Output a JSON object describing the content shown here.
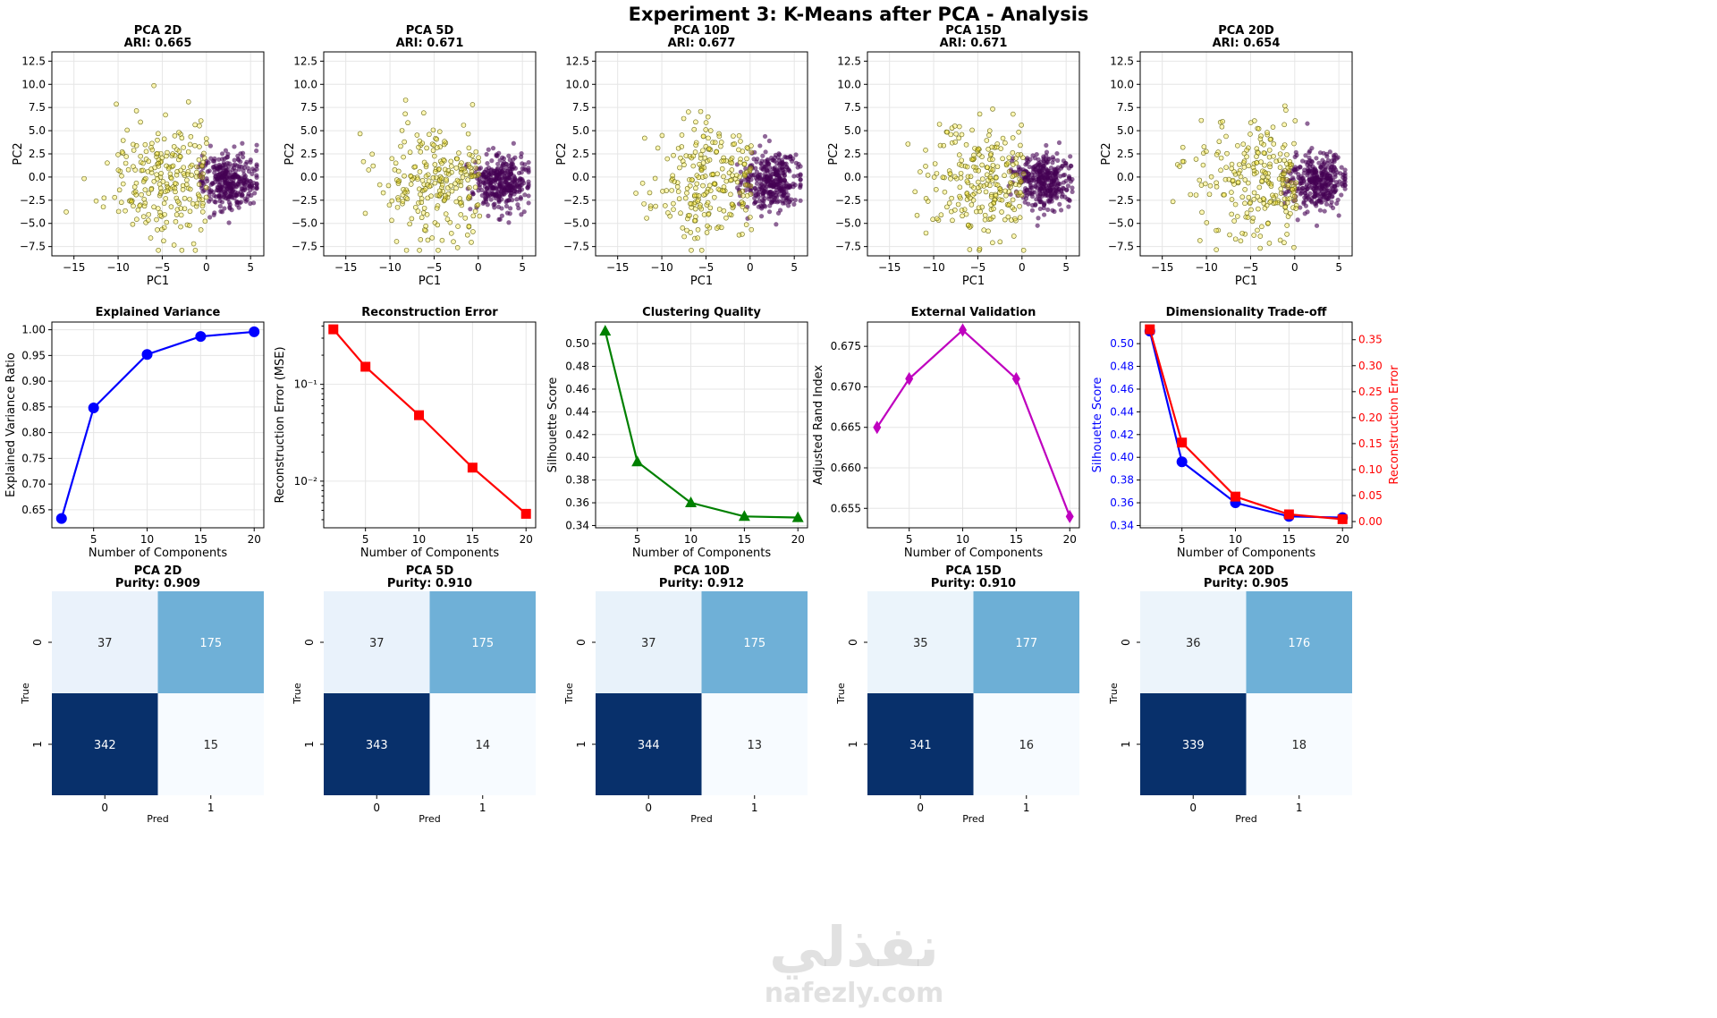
{
  "title": "Experiment 3: K-Means after PCA - Analysis",
  "watermark": {
    "arabic": "نفذلي",
    "latin": "nafezly.com"
  },
  "colors": {
    "cluster0": "#440154",
    "cluster1": "#fde725",
    "blue": "#0000ff",
    "red": "#ff0000",
    "green": "#008000",
    "magenta": "#bf00bf",
    "cm_dark": "#08306b",
    "cm_mid": "#6baed6",
    "cm_light": "#e9f2fa",
    "cm_lightest": "#f7fbff"
  },
  "chart_data": [
    {
      "type": "scatter",
      "title": "PCA 2D",
      "subtitle": "ARI: 0.665",
      "xlabel": "PC1",
      "ylabel": "PC2",
      "xlim": [
        -17.5,
        6.5
      ],
      "ylim": [
        -8.5,
        13.5
      ],
      "xticks": [
        -15,
        -10,
        -5,
        0,
        5
      ],
      "yticks": [
        -7.5,
        -5.0,
        -2.5,
        0.0,
        2.5,
        5.0,
        7.5,
        10.0,
        12.5
      ],
      "grid": true,
      "series": [
        {
          "cluster": 0,
          "color": "#440154",
          "center": [
            2.5,
            -0.5
          ],
          "spread": [
            1.6,
            1.5
          ],
          "count": 340
        },
        {
          "cluster": 1,
          "color": "#fde725",
          "center": [
            -4.5,
            -0.5
          ],
          "spread": [
            3.2,
            3.2
          ],
          "count": 230
        }
      ]
    },
    {
      "type": "scatter",
      "title": "PCA 5D",
      "subtitle": "ARI: 0.671",
      "xlabel": "PC1",
      "ylabel": "PC2",
      "xlim": [
        -17.5,
        6.5
      ],
      "ylim": [
        -8.5,
        13.5
      ],
      "xticks": [
        -15,
        -10,
        -5,
        0,
        5
      ],
      "yticks": [
        -7.5,
        -5.0,
        -2.5,
        0.0,
        2.5,
        5.0,
        7.5,
        10.0,
        12.5
      ],
      "grid": true,
      "series": [
        {
          "cluster": 0,
          "color": "#440154",
          "center": [
            2.5,
            -0.5
          ],
          "spread": [
            1.6,
            1.5
          ],
          "count": 340
        },
        {
          "cluster": 1,
          "color": "#fde725",
          "center": [
            -4.5,
            -0.5
          ],
          "spread": [
            3.2,
            3.2
          ],
          "count": 230
        }
      ]
    },
    {
      "type": "scatter",
      "title": "PCA 10D",
      "subtitle": "ARI: 0.677",
      "xlabel": "PC1",
      "ylabel": "PC2",
      "xlim": [
        -17.5,
        6.5
      ],
      "ylim": [
        -8.5,
        13.5
      ],
      "xticks": [
        -15,
        -10,
        -5,
        0,
        5
      ],
      "yticks": [
        -7.5,
        -5.0,
        -2.5,
        0.0,
        2.5,
        5.0,
        7.5,
        10.0,
        12.5
      ],
      "grid": true,
      "series": [
        {
          "cluster": 0,
          "color": "#440154",
          "center": [
            2.5,
            -0.5
          ],
          "spread": [
            1.6,
            1.5
          ],
          "count": 340
        },
        {
          "cluster": 1,
          "color": "#fde725",
          "center": [
            -4.5,
            -0.5
          ],
          "spread": [
            3.2,
            3.2
          ],
          "count": 230
        }
      ]
    },
    {
      "type": "scatter",
      "title": "PCA 15D",
      "subtitle": "ARI: 0.671",
      "xlabel": "PC1",
      "ylabel": "PC2",
      "xlim": [
        -17.5,
        6.5
      ],
      "ylim": [
        -8.5,
        13.5
      ],
      "xticks": [
        -15,
        -10,
        -5,
        0,
        5
      ],
      "yticks": [
        -7.5,
        -5.0,
        -2.5,
        0.0,
        2.5,
        5.0,
        7.5,
        10.0,
        12.5
      ],
      "grid": true,
      "series": [
        {
          "cluster": 0,
          "color": "#440154",
          "center": [
            2.5,
            -0.5
          ],
          "spread": [
            1.6,
            1.5
          ],
          "count": 340
        },
        {
          "cluster": 1,
          "color": "#fde725",
          "center": [
            -4.5,
            -0.5
          ],
          "spread": [
            3.2,
            3.2
          ],
          "count": 230
        }
      ]
    },
    {
      "type": "scatter",
      "title": "PCA 20D",
      "subtitle": "ARI: 0.654",
      "xlabel": "PC1",
      "ylabel": "PC2",
      "xlim": [
        -17.5,
        6.5
      ],
      "ylim": [
        -8.5,
        13.5
      ],
      "xticks": [
        -15,
        -10,
        -5,
        0,
        5
      ],
      "yticks": [
        -7.5,
        -5.0,
        -2.5,
        0.0,
        2.5,
        5.0,
        7.5,
        10.0,
        12.5
      ],
      "grid": true,
      "series": [
        {
          "cluster": 0,
          "color": "#440154",
          "center": [
            2.5,
            -0.5
          ],
          "spread": [
            1.6,
            1.5
          ],
          "count": 340
        },
        {
          "cluster": 1,
          "color": "#fde725",
          "center": [
            -4.5,
            -0.5
          ],
          "spread": [
            3.2,
            3.2
          ],
          "count": 230
        }
      ]
    },
    {
      "type": "line",
      "title": "Explained Variance",
      "xlabel": "Number of Components",
      "ylabel": "Explained Variance Ratio",
      "x": [
        2,
        5,
        10,
        15,
        20
      ],
      "xlim": [
        1.1,
        20.9
      ],
      "ylim": [
        0.615,
        1.015
      ],
      "xticks": [
        5,
        10,
        15,
        20
      ],
      "yticks": [
        0.65,
        0.7,
        0.75,
        0.8,
        0.85,
        0.9,
        0.95,
        1.0
      ],
      "grid": true,
      "series": [
        {
          "values": [
            0.633,
            0.848,
            0.952,
            0.987,
            0.996
          ],
          "color": "#0000ff",
          "marker": "circle"
        }
      ]
    },
    {
      "type": "line",
      "title": "Reconstruction Error",
      "xlabel": "Number of Components",
      "ylabel": "Reconstruction Error (MSE)",
      "x": [
        2,
        5,
        10,
        15,
        20
      ],
      "xlim": [
        1.1,
        20.9
      ],
      "ylim": [
        0.0033,
        0.44
      ],
      "yscale": "log",
      "xticks": [
        5,
        10,
        15,
        20
      ],
      "yticks": [
        0.01,
        0.1
      ],
      "ytick_labels": [
        "10⁻²",
        "10⁻¹"
      ],
      "grid": true,
      "series": [
        {
          "values": [
            0.37,
            0.152,
            0.048,
            0.0138,
            0.0046
          ],
          "color": "#ff0000",
          "marker": "square"
        }
      ]
    },
    {
      "type": "line",
      "title": "Clustering Quality",
      "xlabel": "Number of Components",
      "ylabel": "Silhouette Score",
      "x": [
        2,
        5,
        10,
        15,
        20
      ],
      "xlim": [
        1.1,
        20.9
      ],
      "ylim": [
        0.338,
        0.519
      ],
      "xticks": [
        5,
        10,
        15,
        20
      ],
      "yticks": [
        0.34,
        0.36,
        0.38,
        0.4,
        0.42,
        0.44,
        0.46,
        0.48,
        0.5
      ],
      "grid": true,
      "series": [
        {
          "values": [
            0.511,
            0.396,
            0.36,
            0.348,
            0.347
          ],
          "color": "#008000",
          "marker": "triangle"
        }
      ]
    },
    {
      "type": "line",
      "title": "External Validation",
      "xlabel": "Number of Components",
      "ylabel": "Adjusted Rand Index",
      "x": [
        2,
        5,
        10,
        15,
        20
      ],
      "xlim": [
        1.1,
        20.9
      ],
      "ylim": [
        0.6526,
        0.678
      ],
      "xticks": [
        5,
        10,
        15,
        20
      ],
      "yticks": [
        0.655,
        0.66,
        0.665,
        0.67,
        0.675
      ],
      "grid": true,
      "series": [
        {
          "values": [
            0.665,
            0.671,
            0.677,
            0.671,
            0.654
          ],
          "color": "#bf00bf",
          "marker": "diamond"
        }
      ]
    },
    {
      "type": "line",
      "title": "Dimensionality Trade-off",
      "xlabel": "Number of Components",
      "ylabel": "Silhouette Score",
      "y2label": "Reconstruction Error",
      "x": [
        2,
        5,
        10,
        15,
        20
      ],
      "xlim": [
        1.1,
        20.9
      ],
      "ylim": [
        0.338,
        0.519
      ],
      "y2lim": [
        -0.012,
        0.384
      ],
      "xticks": [
        5,
        10,
        15,
        20
      ],
      "yticks": [
        0.34,
        0.36,
        0.38,
        0.4,
        0.42,
        0.44,
        0.46,
        0.48,
        0.5
      ],
      "y2ticks": [
        0.0,
        0.05,
        0.1,
        0.15,
        0.2,
        0.25,
        0.3,
        0.35
      ],
      "grid": true,
      "series": [
        {
          "name": "Silhouette Score",
          "axis": "left",
          "values": [
            0.511,
            0.396,
            0.36,
            0.348,
            0.347
          ],
          "color": "#0000ff",
          "marker": "circle"
        },
        {
          "name": "Reconstruction Error",
          "axis": "right",
          "values": [
            0.37,
            0.152,
            0.048,
            0.0138,
            0.0046
          ],
          "color": "#ff0000",
          "marker": "square"
        }
      ]
    },
    {
      "type": "heatmap",
      "title": "PCA 2D",
      "subtitle": "Purity: 0.909",
      "xlabel": "Pred",
      "ylabel": "True",
      "xticks": [
        "0",
        "1"
      ],
      "yticks": [
        "0",
        "1"
      ],
      "values": [
        [
          37,
          175
        ],
        [
          342,
          15
        ]
      ]
    },
    {
      "type": "heatmap",
      "title": "PCA 5D",
      "subtitle": "Purity: 0.910",
      "xlabel": "Pred",
      "ylabel": "True",
      "xticks": [
        "0",
        "1"
      ],
      "yticks": [
        "0",
        "1"
      ],
      "values": [
        [
          37,
          175
        ],
        [
          343,
          14
        ]
      ]
    },
    {
      "type": "heatmap",
      "title": "PCA 10D",
      "subtitle": "Purity: 0.912",
      "xlabel": "Pred",
      "ylabel": "True",
      "xticks": [
        "0",
        "1"
      ],
      "yticks": [
        "0",
        "1"
      ],
      "values": [
        [
          37,
          175
        ],
        [
          344,
          13
        ]
      ]
    },
    {
      "type": "heatmap",
      "title": "PCA 15D",
      "subtitle": "Purity: 0.910",
      "xlabel": "Pred",
      "ylabel": "True",
      "xticks": [
        "0",
        "1"
      ],
      "yticks": [
        "0",
        "1"
      ],
      "values": [
        [
          35,
          177
        ],
        [
          341,
          16
        ]
      ]
    },
    {
      "type": "heatmap",
      "title": "PCA 20D",
      "subtitle": "Purity: 0.905",
      "xlabel": "Pred",
      "ylabel": "True",
      "xticks": [
        "0",
        "1"
      ],
      "yticks": [
        "0",
        "1"
      ],
      "values": [
        [
          36,
          176
        ],
        [
          339,
          18
        ]
      ]
    }
  ]
}
